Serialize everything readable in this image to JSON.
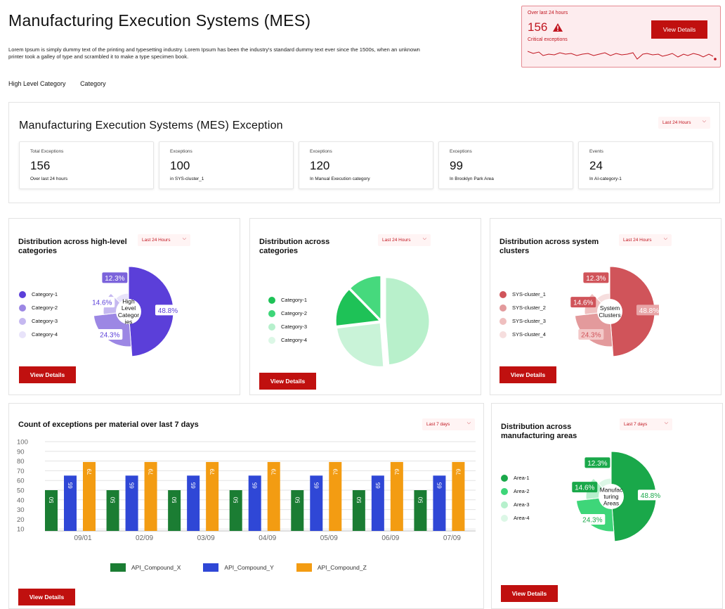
{
  "header": {
    "title": "Manufacturing Execution Systems (MES)",
    "description": "Lorem Ipsum is simply dummy text of the printing and typesetting industry. Lorem Ipsum has been the industry's standard dummy text ever since the 1500s, when an unknown printer took a galley of type and scrambled it to make a type specimen book.",
    "nav": [
      "High Level Category",
      "Category"
    ]
  },
  "alert": {
    "label": "Over last 24 hours",
    "value": "156",
    "icon": "warning-triangle-icon",
    "sub": "Critical exceptions",
    "button": "View Details"
  },
  "mes": {
    "title": "Manufacturing Execution Systems (MES) Exception",
    "range": "Last 24 Hours",
    "stats": [
      {
        "label": "Total Exceptions",
        "value": "156",
        "sub": "Over last 24 hours"
      },
      {
        "label": "Exceptions",
        "value": "100",
        "sub": "in SYS-cluster_1"
      },
      {
        "label": "Exceptions",
        "value": "120",
        "sub": "In Manual Execution category"
      },
      {
        "label": "Exceptions",
        "value": "99",
        "sub": "In Brooklyn Park Area"
      },
      {
        "label": "Events",
        "value": "24",
        "sub": "In AI-category-1"
      }
    ]
  },
  "colors": {
    "accent": "#c0100f",
    "purple": [
      "#5b3fd9",
      "#9c87e4",
      "#c5b8f0",
      "#e8e3fa"
    ],
    "green": [
      "#1aa84a",
      "#3ed679",
      "#b6f0cc",
      "#dcf7e6"
    ],
    "red": [
      "#d0545a",
      "#e39a9c",
      "#efbfbf",
      "#f6dede"
    ],
    "bars": [
      "#1b7d33",
      "#2f47d6",
      "#f39c12"
    ]
  },
  "cards": {
    "high_level": {
      "title": "Distribution across high-level categories",
      "range": "Last 24 Hours",
      "center": "High Level Categor ies",
      "button": "View Details"
    },
    "categories": {
      "title": "Distribution across categories",
      "range": "Last 24 Hours",
      "button": "View Details"
    },
    "clusters": {
      "title": "Distribution across system clusters",
      "range": "Last 24 Hours",
      "center": "System Clusters",
      "button": "View Details"
    },
    "materials": {
      "title": "Count of exceptions per material over last 7 days",
      "range": "Last 7 days",
      "button": "View Details"
    },
    "areas": {
      "title": "Distribution across manufacturing areas",
      "range": "Last 7 days",
      "center": "Manufac turing Areas",
      "button": "View Details"
    }
  },
  "chart_data": [
    {
      "type": "pie",
      "variant": "donut",
      "labels": [
        "Category-1",
        "Category-2",
        "Category-3",
        "Category-4"
      ],
      "values": [
        48.8,
        24.3,
        14.6,
        12.3
      ],
      "data_labels": [
        "48.8%",
        "24.3%",
        "14.6%",
        "12.3%"
      ],
      "center_label": "High Level Categor ies"
    },
    {
      "type": "pie",
      "labels": [
        "Category-1",
        "Category-2",
        "Category-3",
        "Category-4"
      ],
      "values": [
        48.8,
        24.3,
        14.6,
        12.3
      ]
    },
    {
      "type": "pie",
      "variant": "donut",
      "labels": [
        "SYS-cluster_1",
        "SYS-cluster_2",
        "SYS-cluster_3",
        "SYS-cluster_4"
      ],
      "values": [
        48.8,
        24.3,
        14.6,
        12.3
      ],
      "data_labels": [
        "48.8%",
        "24.3%",
        "14.6%",
        "12.3%"
      ],
      "center_label": "System Clusters"
    },
    {
      "type": "bar",
      "categories": [
        "09/01",
        "02/09",
        "03/09",
        "04/09",
        "05/09",
        "06/09",
        "07/09"
      ],
      "series": [
        {
          "name": "API_Compound_X",
          "values": [
            50,
            50,
            50,
            50,
            50,
            50,
            50
          ]
        },
        {
          "name": "API_Compound_Y",
          "values": [
            65,
            65,
            65,
            65,
            65,
            65,
            65
          ]
        },
        {
          "name": "API_Compound_Z",
          "values": [
            79,
            79,
            79,
            79,
            79,
            79,
            79
          ]
        }
      ],
      "yticks": [
        10,
        20,
        30,
        40,
        50,
        60,
        70,
        80,
        90,
        100
      ],
      "ylim": [
        0,
        100
      ],
      "legend": "bottom"
    },
    {
      "type": "pie",
      "variant": "donut",
      "labels": [
        "Area-1",
        "Area-2",
        "Area-3",
        "Area-4"
      ],
      "values": [
        48.8,
        24.3,
        14.6,
        12.3
      ],
      "data_labels": [
        "48.8%",
        "24.3%",
        "14.6%",
        "12.3%"
      ],
      "center_label": "Manufac turing Areas"
    }
  ]
}
